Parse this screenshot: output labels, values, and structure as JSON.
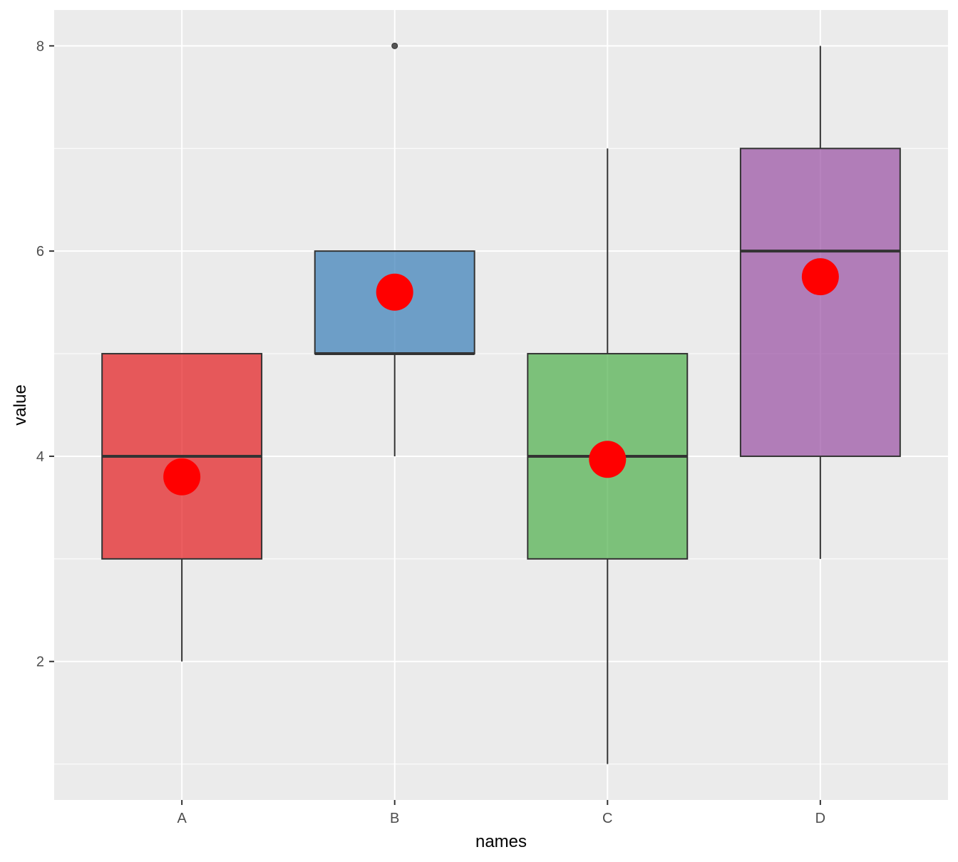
{
  "chart_data": {
    "type": "boxplot",
    "xlabel": "names",
    "ylabel": "value",
    "categories": [
      "A",
      "B",
      "C",
      "D"
    ],
    "ylim": [
      0.65,
      8.35
    ],
    "y_ticks": [
      2,
      4,
      6,
      8
    ],
    "grid": true,
    "legend": "none",
    "boxes": [
      {
        "category": "A",
        "min": 2,
        "q1": 3,
        "median": 4,
        "q3": 5,
        "max": 5,
        "mean": 3.8,
        "outliers": [],
        "color": "#E41A1C"
      },
      {
        "category": "B",
        "min": 4,
        "q1": 5,
        "median": 5,
        "q3": 6,
        "max": 6,
        "mean": 5.6,
        "outliers": [
          8
        ],
        "color": "#377EB8"
      },
      {
        "category": "C",
        "min": 1,
        "q1": 3,
        "median": 4,
        "q3": 5,
        "max": 7,
        "mean": 3.97,
        "outliers": [],
        "color": "#4DAF4A"
      },
      {
        "category": "D",
        "min": 3,
        "q1": 4,
        "median": 6,
        "q3": 7,
        "max": 8,
        "mean": 5.75,
        "outliers": [],
        "color": "#984EA3"
      }
    ],
    "box_fill_alpha": 0.7,
    "mean_marker_color": "#FF0000",
    "panel_background": "#EBEBEB",
    "grid_color": "#FFFFFF"
  }
}
